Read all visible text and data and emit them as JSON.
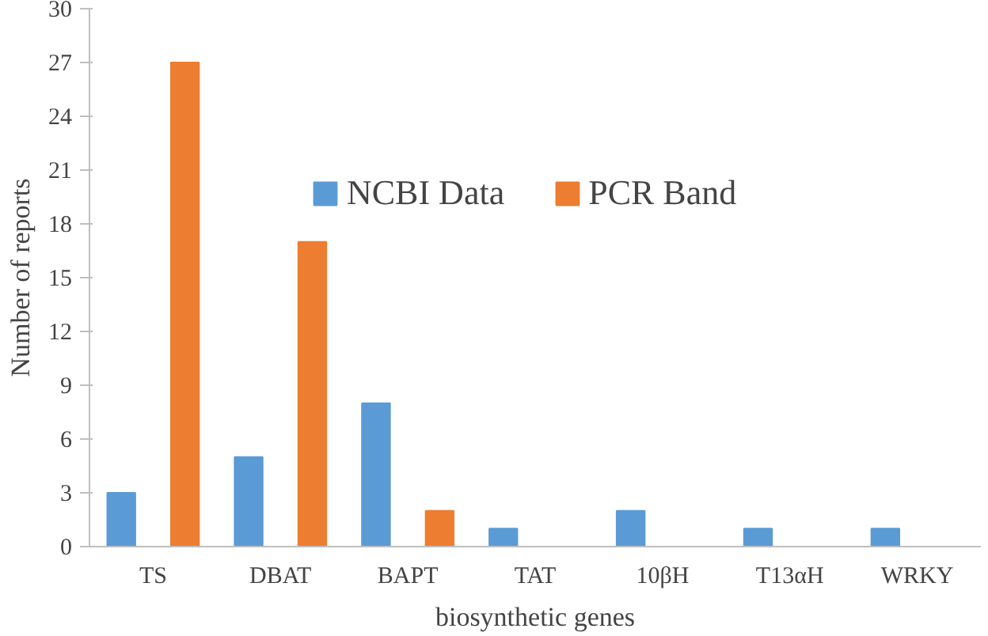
{
  "chart_data": {
    "type": "bar",
    "xlabel": "biosynthetic genes",
    "ylabel": "Number of reports",
    "categories": [
      "TS",
      "DBAT",
      "BAPT",
      "TAT",
      "10βH",
      "T13αH",
      "WRKY"
    ],
    "series": [
      {
        "name": "NCBI Data",
        "color": "#5b9bd5",
        "values": [
          3,
          5,
          8,
          1,
          2,
          1,
          1
        ]
      },
      {
        "name": "PCR Band",
        "color": "#ed7d31",
        "values": [
          27,
          17,
          2,
          0,
          0,
          0,
          0
        ]
      }
    ],
    "ylim": [
      0,
      30
    ],
    "yticks": [
      0,
      3,
      6,
      9,
      12,
      15,
      18,
      21,
      24,
      27,
      30
    ],
    "grid": false,
    "legend": "top"
  }
}
